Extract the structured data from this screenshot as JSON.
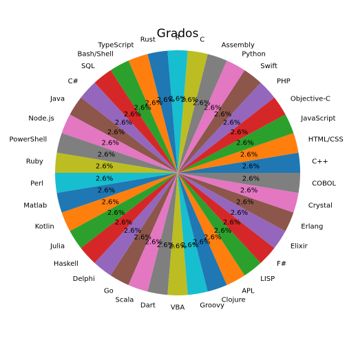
{
  "chart_data": {
    "type": "pie",
    "title": "Grados",
    "labels": [
      "C++",
      "HTML/CSS",
      "JavaScript",
      "Objective-C",
      "PHP",
      "Swift",
      "Python",
      "Assembly",
      "C",
      "R",
      "Rust",
      "TypeScript",
      "Bash/Shell",
      "SQL",
      "C#",
      "Java",
      "Node.js",
      "PowerShell",
      "Ruby",
      "Perl",
      "Matlab",
      "Kotlin",
      "Julia",
      "Haskell",
      "Delphi",
      "Go",
      "Scala",
      "Dart",
      "VBA",
      "Groovy",
      "Clojure",
      "APL",
      "LISP",
      "F#",
      "Elixir",
      "Erlang",
      "Crystal",
      "COBOL"
    ],
    "values": [
      1,
      1,
      1,
      1,
      1,
      1,
      1,
      1,
      1,
      1,
      1,
      1,
      1,
      1,
      1,
      1,
      1,
      1,
      1,
      1,
      1,
      1,
      1,
      1,
      1,
      1,
      1,
      1,
      1,
      1,
      1,
      1,
      1,
      1,
      1,
      1,
      1,
      1
    ],
    "autopct": "2.6%",
    "start_angle_deg": 0,
    "direction": "counterclockwise",
    "colors": [
      "#1f77b4",
      "#ff7f0e",
      "#2ca02c",
      "#d62728",
      "#9467bd",
      "#8c564b",
      "#e377c2",
      "#7f7f7f",
      "#bcbd22",
      "#17becf"
    ]
  }
}
